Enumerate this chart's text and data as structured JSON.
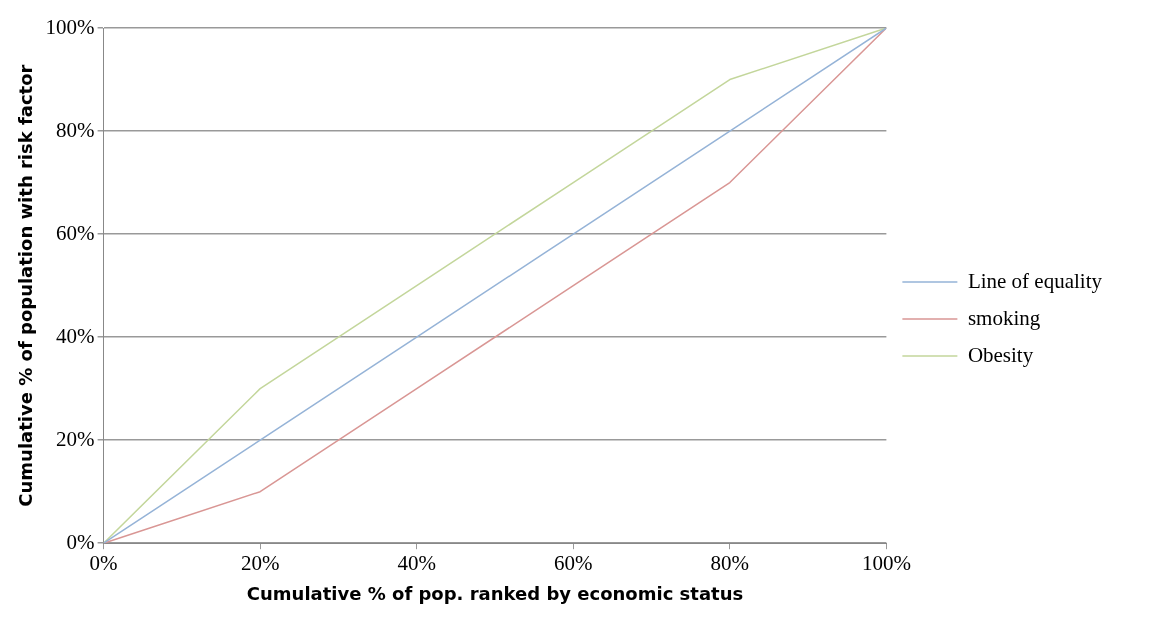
{
  "chart_data": {
    "type": "line",
    "xlabel": "Cumulative % of pop. ranked by economic status",
    "ylabel": "Cumulative % of population with risk factor",
    "x": [
      0,
      20,
      40,
      60,
      80,
      100
    ],
    "series": [
      {
        "name": "Line of equality",
        "color": "#95b3d7",
        "values": [
          0,
          20,
          40,
          60,
          80,
          100
        ]
      },
      {
        "name": "smoking",
        "color": "#d99694",
        "values": [
          0,
          10,
          30,
          50,
          70,
          100
        ]
      },
      {
        "name": "Obesity",
        "color": "#c3d69b",
        "values": [
          0,
          30,
          50,
          70,
          90,
          100
        ]
      }
    ],
    "xlim": [
      0,
      100
    ],
    "ylim": [
      0,
      100
    ],
    "xticks": [
      {
        "value": 0,
        "label": "0%"
      },
      {
        "value": 20,
        "label": "20%"
      },
      {
        "value": 40,
        "label": "40%"
      },
      {
        "value": 60,
        "label": "60%"
      },
      {
        "value": 80,
        "label": "80%"
      },
      {
        "value": 100,
        "label": "100%"
      }
    ],
    "yticks": [
      {
        "value": 0,
        "label": "0%"
      },
      {
        "value": 20,
        "label": "20%"
      },
      {
        "value": 40,
        "label": "40%"
      },
      {
        "value": 60,
        "label": "60%"
      },
      {
        "value": 80,
        "label": "80%"
      },
      {
        "value": 100,
        "label": "100%"
      }
    ],
    "grid": "y",
    "legend": "right",
    "marker": "none",
    "line_style": "solid"
  }
}
